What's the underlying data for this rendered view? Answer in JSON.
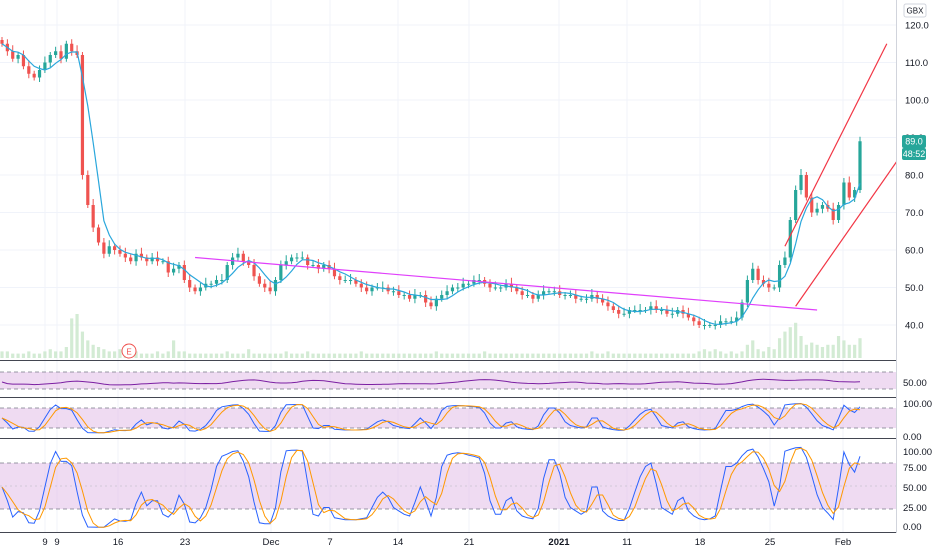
{
  "currency": "GBX",
  "last_price_label": "89.0",
  "countdown_label": "48:52",
  "earnings_marker": "E",
  "colors": {
    "up": "#26a69a",
    "down": "#ef5350",
    "ma": "#2aa7dc",
    "trendline": "#e040fb",
    "channel": "#f23645",
    "osc_fill": "#e1bee7",
    "rsi_line": "#7b1fa2",
    "stoch_k": "#2962ff",
    "stoch_d": "#ff9800",
    "volume": "#c8e6c9",
    "price_tag": "#26a69a"
  },
  "chart_data": {
    "type": "candlestick",
    "x_tick_labels": [
      "9",
      "9",
      "16",
      "23",
      "Dec",
      "7",
      "14",
      "21",
      "2021",
      "11",
      "18",
      "25",
      "Feb"
    ],
    "price_axis_ticks": [
      "120.0",
      "110.0",
      "100.0",
      "90.0",
      "80.0",
      "70.0",
      "60.0",
      "50.0",
      "40.0"
    ],
    "y_range": [
      30,
      125
    ],
    "close_series": [
      115,
      113,
      111,
      112,
      109,
      107,
      106,
      108,
      110,
      112,
      113,
      111,
      115,
      113,
      112,
      80,
      72,
      66,
      62,
      59,
      61,
      60,
      59,
      58,
      57,
      59,
      58,
      57,
      58,
      57,
      57,
      54,
      55,
      56,
      52,
      50,
      49,
      50,
      51,
      51,
      52,
      52,
      56,
      58,
      59,
      57,
      56,
      53,
      51,
      50,
      49,
      52,
      56,
      57,
      58,
      58,
      58,
      56,
      56,
      55,
      56,
      55,
      53,
      52,
      52,
      52,
      51,
      50,
      49,
      50,
      50,
      50,
      49,
      49,
      48,
      48,
      47,
      48,
      48,
      46,
      45,
      47,
      48,
      49,
      50,
      50,
      51,
      51,
      52,
      52,
      51,
      50,
      50,
      50,
      51,
      50,
      49,
      48,
      48,
      47,
      48,
      49,
      49,
      49,
      48,
      48,
      48,
      47,
      47,
      47,
      48,
      47,
      46,
      45,
      44,
      43,
      43,
      44,
      44,
      44,
      44,
      45,
      44,
      44,
      43,
      43,
      44,
      43,
      42,
      41,
      40,
      40,
      40,
      40,
      41,
      41,
      41,
      42,
      46,
      52,
      55,
      52,
      51,
      50,
      50,
      56,
      58,
      68,
      76,
      80,
      74,
      70,
      71,
      72,
      71,
      68,
      72,
      78,
      74,
      76,
      89
    ],
    "volume_series": [
      3,
      3,
      2,
      2,
      2,
      3,
      2,
      2,
      3,
      4,
      3,
      3,
      5,
      18,
      20,
      12,
      8,
      6,
      5,
      4,
      3,
      3,
      4,
      3,
      3,
      3,
      2,
      2,
      2,
      3,
      2,
      3,
      8,
      3,
      3,
      2,
      2,
      2,
      2,
      2,
      2,
      2,
      3,
      2,
      2,
      2,
      4,
      2,
      2,
      2,
      2,
      2,
      2,
      3,
      2,
      2,
      2,
      3,
      2,
      2,
      2,
      2,
      2,
      2,
      2,
      2,
      2,
      3,
      2,
      2,
      2,
      2,
      2,
      2,
      2,
      2,
      2,
      2,
      2,
      2,
      2,
      3,
      2,
      2,
      2,
      2,
      2,
      2,
      2,
      2,
      3,
      2,
      2,
      2,
      2,
      2,
      2,
      2,
      2,
      2,
      2,
      2,
      2,
      2,
      2,
      2,
      2,
      2,
      2,
      2,
      3,
      2,
      2,
      3,
      2,
      2,
      2,
      2,
      2,
      2,
      2,
      2,
      2,
      2,
      2,
      2,
      2,
      2,
      2,
      2,
      3,
      4,
      3,
      4,
      3,
      2,
      3,
      2,
      3,
      6,
      8,
      4,
      3,
      5,
      4,
      9,
      12,
      14,
      16,
      10,
      6,
      7,
      6,
      5,
      6,
      6,
      10,
      8,
      6,
      6,
      9
    ],
    "trendline": {
      "from": [
        36,
        58
      ],
      "to": [
        152,
        44
      ]
    },
    "channel": {
      "upper": {
        "from": [
          146,
          61
        ],
        "to": [
          165,
          115
        ]
      },
      "lower": {
        "from": [
          148,
          45
        ],
        "to": [
          169,
          88
        ]
      }
    },
    "rsi_pane": {
      "axis_labels": [
        "50.00"
      ]
    },
    "stoch_pane_1": {
      "axis_labels": [
        "100.00",
        "0.00"
      ]
    },
    "stoch_pane_2": {
      "axis_labels": [
        "100.00",
        "75.00",
        "50.00",
        "25.00",
        "0.00"
      ]
    }
  }
}
